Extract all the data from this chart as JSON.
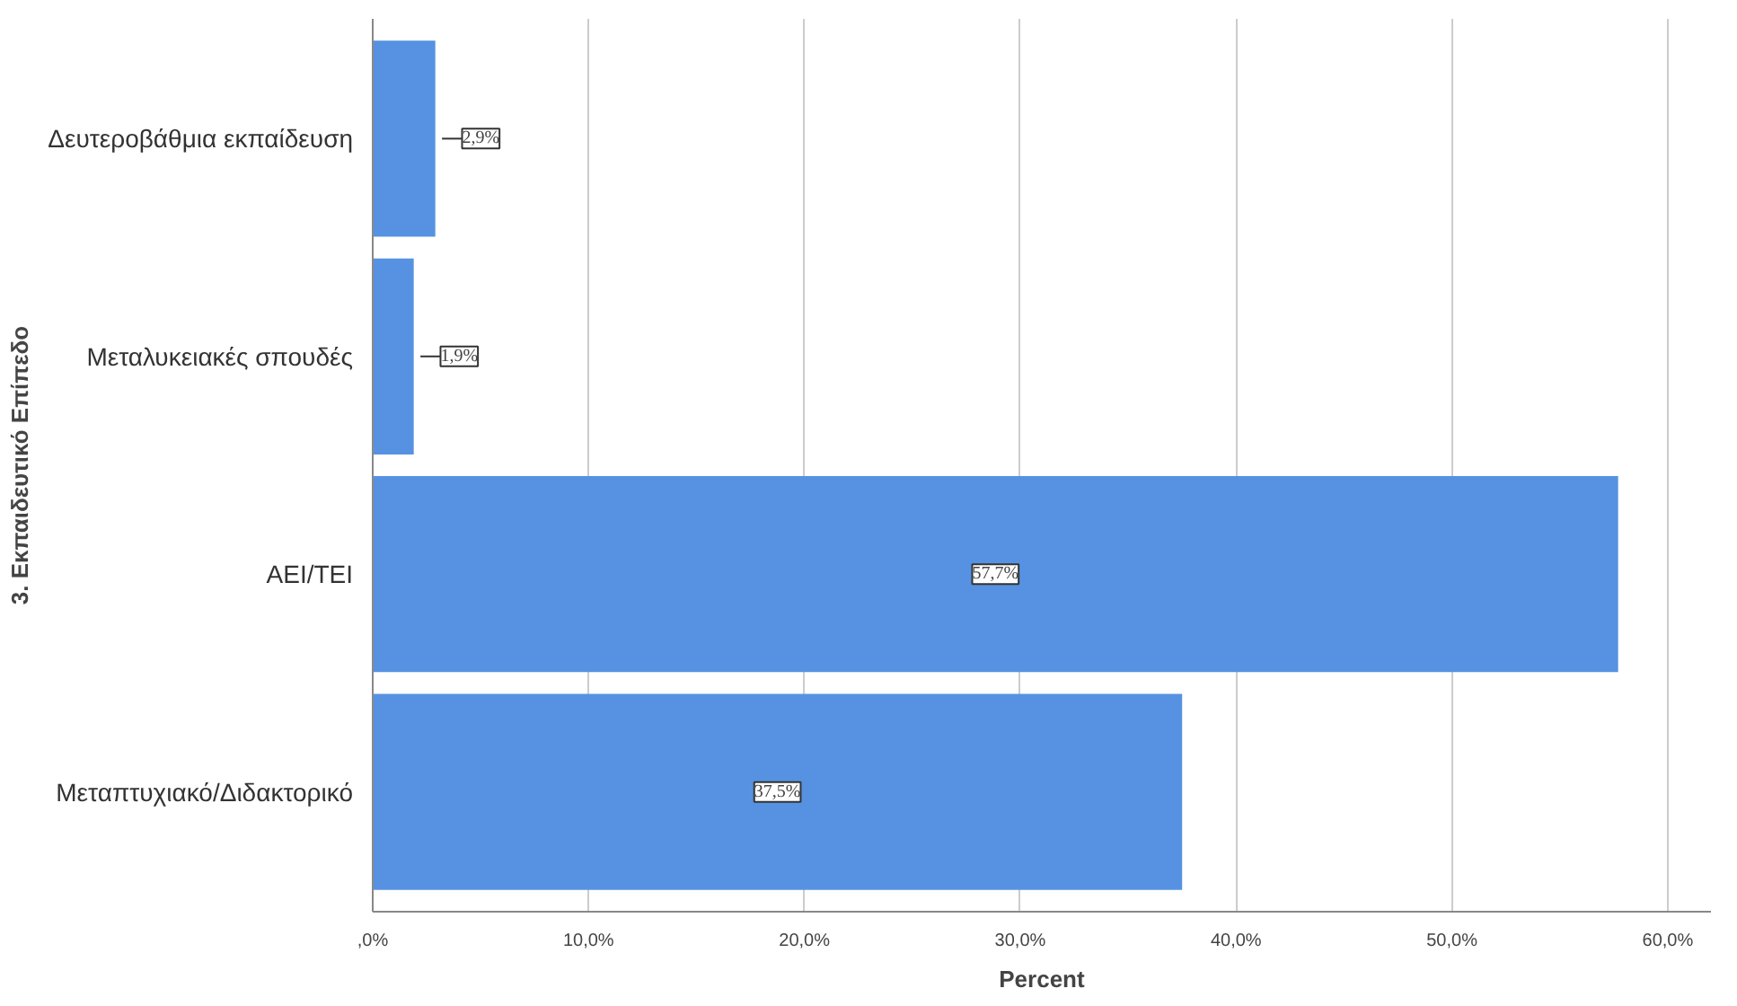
{
  "chart_data": {
    "type": "bar",
    "orientation": "horizontal",
    "xlabel": "Percent",
    "ylabel": "3. Εκπαιδευτικό Επίπεδο",
    "categories": [
      "Δευτεροβάθμια εκπαίδευση",
      "Μεταλυκειακές σπουδές",
      "ΑΕΙ/ΤΕΙ",
      "Μεταπτυχιακό/Διδακτορικό"
    ],
    "values": [
      2.9,
      1.9,
      57.7,
      37.5
    ],
    "value_labels": [
      "2,9%",
      "1,9%",
      "57,7%",
      "37,5%"
    ],
    "color": "#5692e1",
    "xlim": [
      0,
      62
    ],
    "xticks": [
      {
        "value": 0,
        "label": ",0%"
      },
      {
        "value": 10,
        "label": "10,0%"
      },
      {
        "value": 20,
        "label": "20,0%"
      },
      {
        "value": 30,
        "label": "30,0%"
      },
      {
        "value": 40,
        "label": "40,0%"
      },
      {
        "value": 50,
        "label": "50,0%"
      },
      {
        "value": 60,
        "label": "60,0%"
      }
    ],
    "grid": "x"
  }
}
